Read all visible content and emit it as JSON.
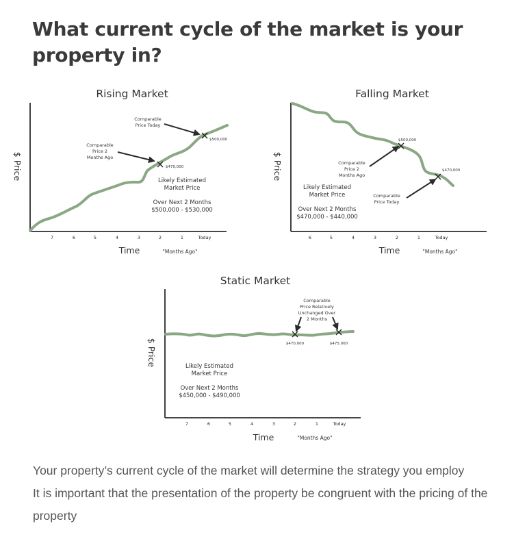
{
  "headline": "What current cycle of the market is your property in?",
  "colors": {
    "line": "#8aa884",
    "axis": "#2b2b2b",
    "text": "#333333",
    "body": "#555555"
  },
  "chart_data": [
    {
      "type": "line",
      "title": "Rising Market",
      "xlabel": "Time",
      "xlabel_note": "\"Months Ago\"",
      "ylabel": "$ Price",
      "x": [
        "7",
        "6",
        "5",
        "4",
        "3",
        "2",
        "1",
        "Today"
      ],
      "trend": "rising",
      "points": [
        {
          "x": 2,
          "value": 470000,
          "label": "$470,000",
          "annotation": [
            "Comparable",
            "Price 2",
            "Months Ago"
          ]
        },
        {
          "x": 0,
          "value": 500000,
          "label": "$500,000",
          "annotation": [
            "Comparable",
            "Price Today"
          ]
        }
      ],
      "estimate": {
        "lines": [
          "Likely Estimated",
          "Market Price"
        ],
        "period": "Over Next 2 Months",
        "range": "$500,000 - $530,000"
      }
    },
    {
      "type": "line",
      "title": "Falling Market",
      "xlabel": "Time",
      "xlabel_note": "\"Months Ago\"",
      "ylabel": "$ Price",
      "x": [
        "6",
        "5",
        "4",
        "3",
        "2",
        "1",
        "Today"
      ],
      "trend": "falling",
      "points": [
        {
          "x": 2,
          "value": 500000,
          "label": "$500,000",
          "annotation": [
            "Comparable",
            "Price 2",
            "Months Ago"
          ]
        },
        {
          "x": 0,
          "value": 470000,
          "label": "$470,000",
          "annotation": [
            "Comparable",
            "Price Today"
          ]
        }
      ],
      "estimate": {
        "lines": [
          "Likely Estimated",
          "Market Price"
        ],
        "period": "Over Next 2 Months",
        "range": "$470,000 - $440,000"
      }
    },
    {
      "type": "line",
      "title": "Static Market",
      "xlabel": "Time",
      "xlabel_note": "\"Months Ago\"",
      "ylabel": "$ Price",
      "x": [
        "7",
        "6",
        "5",
        "4",
        "3",
        "2",
        "1",
        "Today"
      ],
      "trend": "flat",
      "points": [
        {
          "x": 2,
          "value": 470000,
          "label": "$470,000"
        },
        {
          "x": 0,
          "value": 475000,
          "label": "$475,000"
        }
      ],
      "annotation": [
        "Comparable",
        "Price Relatively",
        "Unchanged Over",
        "2 Months"
      ],
      "estimate": {
        "lines": [
          "Likely Estimated",
          "Market Price"
        ],
        "period": "Over Next 2 Months",
        "range": "$450,000 - $490,000"
      }
    }
  ],
  "paragraphs": [
    "Your property’s current cycle of the market will determine the strategy you employ",
    "It is important that the presentation of the property be congruent with the pricing of the property"
  ]
}
